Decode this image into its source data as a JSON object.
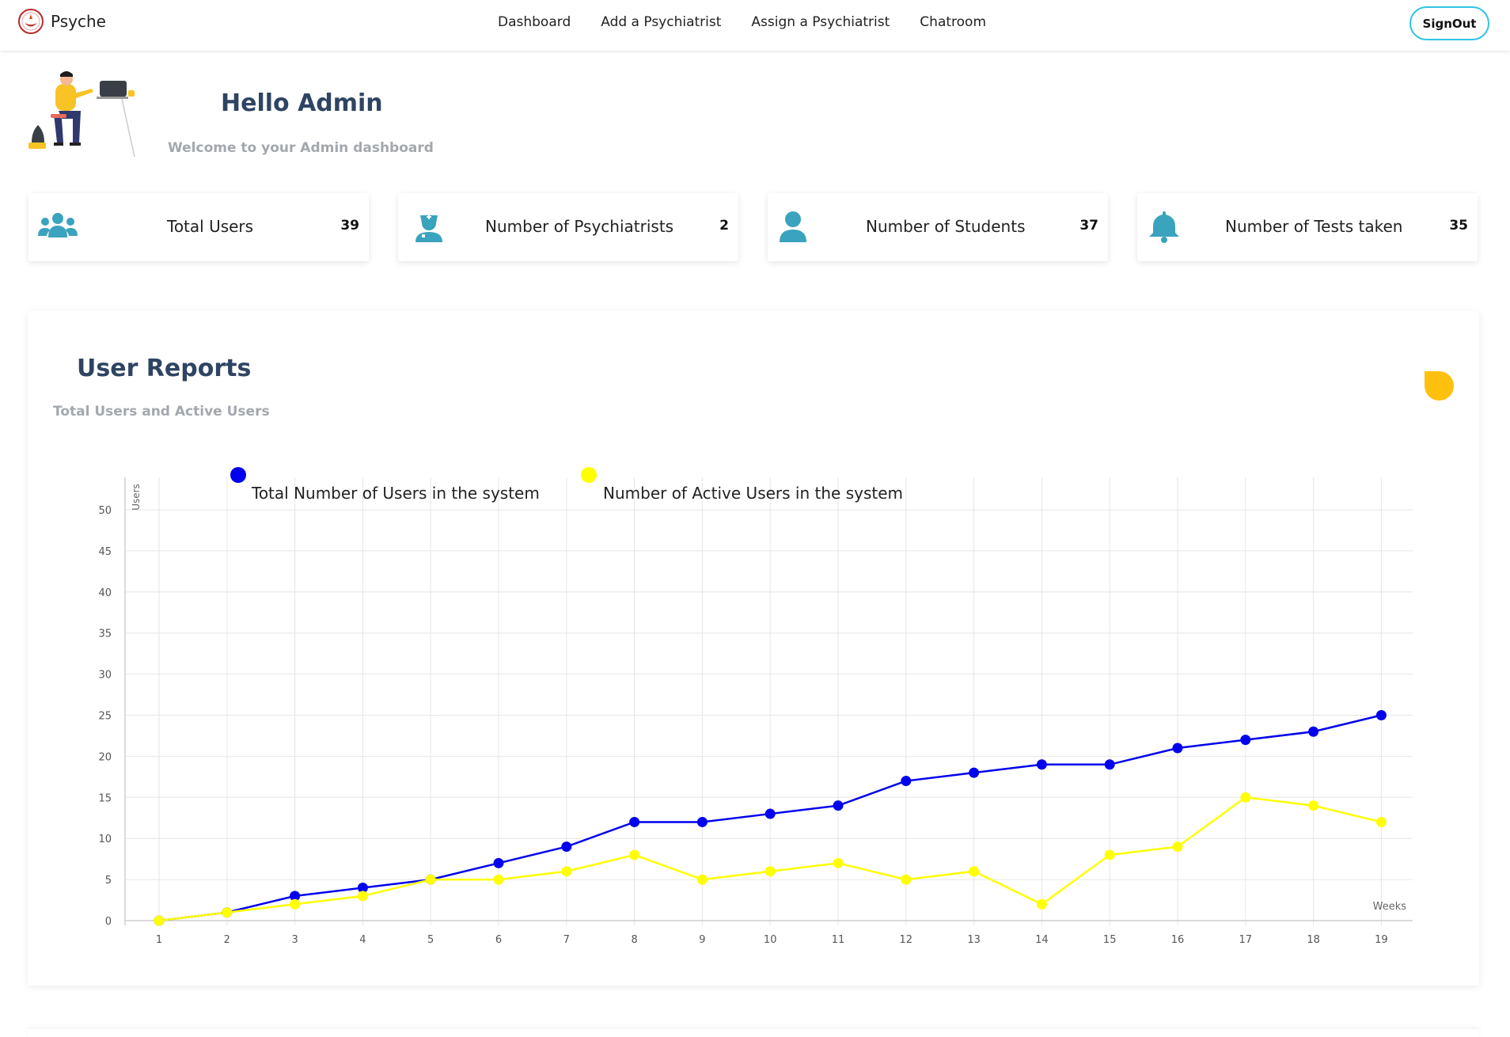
{
  "navbar": {
    "brand": "Psyche",
    "links": [
      {
        "label": "Dashboard"
      },
      {
        "label": "Add a Psychiatrist"
      },
      {
        "label": "Assign a Psychiatrist"
      },
      {
        "label": "Chatroom"
      }
    ],
    "signout_label": "SignOut"
  },
  "hero": {
    "title": "Hello Admin",
    "subtitle": "Welcome to your Admin dashboard"
  },
  "stats": [
    {
      "label": "Total Users",
      "value": "39",
      "icon": "users-icon"
    },
    {
      "label": "Number of Psychiatrists",
      "value": "2",
      "icon": "doctor-icon"
    },
    {
      "label": "Number of Students",
      "value": "37",
      "icon": "user-icon"
    },
    {
      "label": "Number of Tests taken",
      "value": "35",
      "icon": "bell-icon"
    }
  ],
  "colors": {
    "accent": "#3aa3bd",
    "heading": "#2e4462",
    "muted": "#a3a8ae",
    "signout_border": "#2fc4e6",
    "total_series": "#0000ee",
    "active_series": "#ffff00",
    "blob": "#ffc10e"
  },
  "report": {
    "title": "User Reports",
    "subtitle": "Total Users and Active Users"
  },
  "chart_data": {
    "type": "line",
    "title": "",
    "xlabel": "Weeks",
    "ylabel": "Users",
    "x": [
      1,
      2,
      3,
      4,
      5,
      6,
      7,
      8,
      9,
      10,
      11,
      12,
      13,
      14,
      15,
      16,
      17,
      18,
      19
    ],
    "ylim": [
      0,
      50
    ],
    "yticks": [
      0,
      5,
      10,
      15,
      20,
      25,
      30,
      35,
      40,
      45,
      50
    ],
    "grid": true,
    "legend_position": "top",
    "series": [
      {
        "name": "Total Number of Users in the system",
        "color": "#0000ee",
        "values": [
          0,
          1,
          3,
          4,
          5,
          7,
          9,
          12,
          12,
          13,
          14,
          17,
          18,
          19,
          19,
          21,
          22,
          23,
          25
        ]
      },
      {
        "name": "Number of Active Users in the system",
        "color": "#ffff00",
        "values": [
          0,
          1,
          2,
          3,
          5,
          5,
          6,
          8,
          5,
          6,
          7,
          5,
          6,
          2,
          8,
          9,
          15,
          14,
          12
        ]
      }
    ]
  }
}
